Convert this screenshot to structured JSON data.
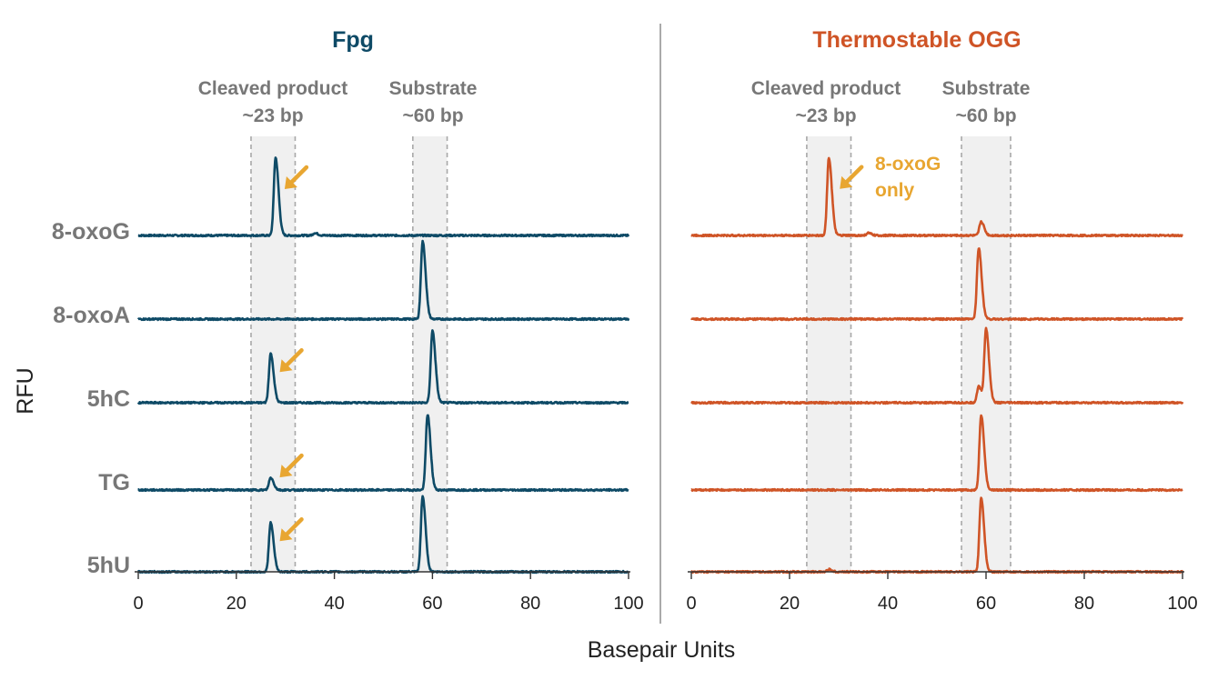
{
  "chart_data": [
    {
      "type": "line",
      "id": "fpg",
      "title": "Fpg",
      "title_color": "#0e4a66",
      "series_color": "#0e4a66",
      "xlabel": "Basepair Units",
      "ylabel": "RFU",
      "xlim": [
        0,
        100
      ],
      "x_ticks": [
        "0",
        "20",
        "40",
        "60",
        "80",
        "100"
      ],
      "regions": [
        {
          "name": "Cleaved product",
          "size": "~23 bp",
          "x_range": [
            23,
            32
          ]
        },
        {
          "name": "Substrate",
          "size": "~60 bp",
          "x_range": [
            56,
            63
          ]
        }
      ],
      "series": [
        {
          "name": "8-oxoG",
          "peaks": [
            {
              "x": 28,
              "height": 0.95
            },
            {
              "x": 36,
              "height": 0.03
            }
          ],
          "arrow": true
        },
        {
          "name": "8-oxoA",
          "peaks": [
            {
              "x": 58,
              "height": 0.95
            }
          ],
          "arrow": false
        },
        {
          "name": "5hC",
          "peaks": [
            {
              "x": 27,
              "height": 0.6
            },
            {
              "x": 60,
              "height": 0.88
            }
          ],
          "arrow": true
        },
        {
          "name": "TG",
          "peaks": [
            {
              "x": 27,
              "height": 0.15
            },
            {
              "x": 59,
              "height": 0.92
            }
          ],
          "arrow": true
        },
        {
          "name": "5hU",
          "peaks": [
            {
              "x": 27,
              "height": 0.6
            },
            {
              "x": 58,
              "height": 0.92
            }
          ],
          "arrow": true
        }
      ]
    },
    {
      "type": "line",
      "id": "ogg",
      "title": "Thermostable OGG",
      "title_color": "#cf5426",
      "series_color": "#cf5426",
      "xlabel": "Basepair Units",
      "ylabel": "RFU",
      "xlim": [
        0,
        100
      ],
      "x_ticks": [
        "0",
        "20",
        "40",
        "60",
        "80",
        "100"
      ],
      "regions": [
        {
          "name": "Cleaved product",
          "size": "~23 bp",
          "x_range": [
            23.5,
            32.5
          ]
        },
        {
          "name": "Substrate",
          "size": "~60 bp",
          "x_range": [
            55,
            65
          ]
        }
      ],
      "annotation": {
        "line1": "8-oxoG",
        "line2": "only",
        "color": "#e8a631"
      },
      "series": [
        {
          "name": "8-oxoG",
          "peaks": [
            {
              "x": 28,
              "height": 0.95
            },
            {
              "x": 59,
              "height": 0.17
            },
            {
              "x": 36,
              "height": 0.03
            }
          ]
        },
        {
          "name": "8-oxoA",
          "peaks": [
            {
              "x": 58.5,
              "height": 0.87
            }
          ]
        },
        {
          "name": "5hC",
          "peaks": [
            {
              "x": 60,
              "height": 0.9
            },
            {
              "x": 58.5,
              "height": 0.2
            }
          ]
        },
        {
          "name": "TG",
          "peaks": [
            {
              "x": 59,
              "height": 0.92
            }
          ]
        },
        {
          "name": "5hU",
          "peaks": [
            {
              "x": 59,
              "height": 0.9
            },
            {
              "x": 28,
              "height": 0.03
            }
          ]
        }
      ]
    }
  ],
  "arrow_color": "#e8a631"
}
